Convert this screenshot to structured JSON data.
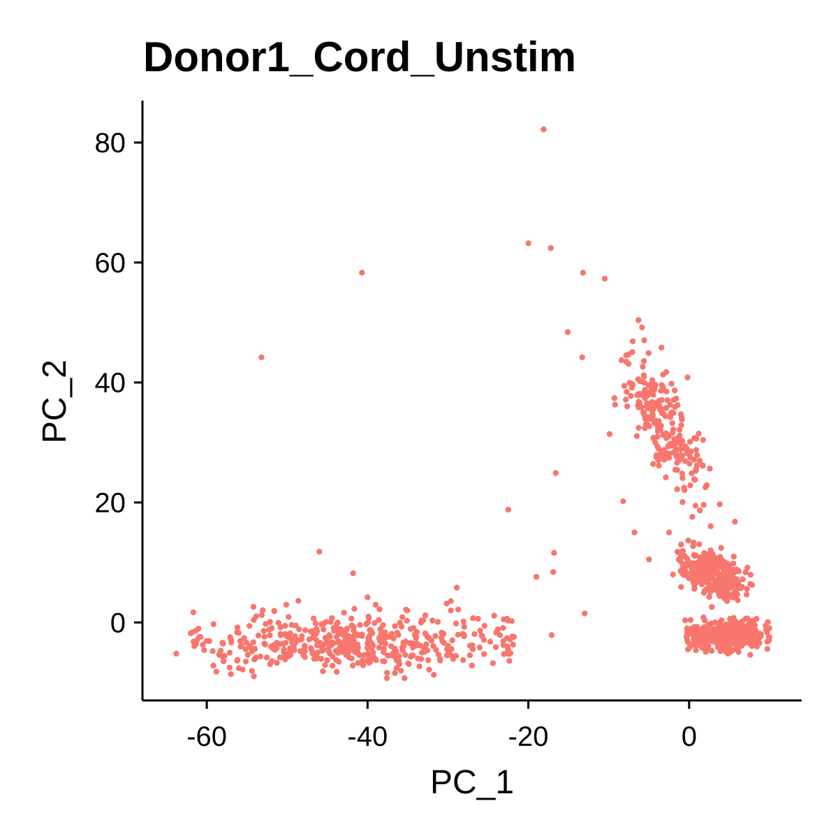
{
  "chart_data": {
    "type": "scatter",
    "title": "Donor1_Cord_Unstim",
    "xlabel": "PC_1",
    "ylabel": "PC_2",
    "xlim": [
      -68,
      14
    ],
    "ylim": [
      -13,
      87
    ],
    "xticks": [
      -60,
      -40,
      -20,
      0
    ],
    "yticks": [
      0,
      20,
      40,
      60,
      80
    ],
    "xtick_labels": [
      "-60",
      "-40",
      "-20",
      "0"
    ],
    "ytick_labels": [
      "0",
      "20",
      "40",
      "60",
      "80"
    ],
    "grid": false,
    "legend": "none",
    "point_color": "#F8766D",
    "point_size": 2.2,
    "outliers": [
      [
        -18.1,
        82.2
      ],
      [
        -20.0,
        63.2
      ],
      [
        -17.2,
        62.4
      ],
      [
        -13.2,
        58.3
      ],
      [
        -10.5,
        57.3
      ],
      [
        -40.7,
        58.3
      ],
      [
        -53.2,
        44.2
      ],
      [
        -15.1,
        48.4
      ],
      [
        -13.3,
        44.2
      ],
      [
        -6.3,
        50.4
      ],
      [
        -9.3,
        37.4
      ],
      [
        -9.2,
        36.3
      ],
      [
        -9.9,
        31.4
      ],
      [
        -16.6,
        24.9
      ],
      [
        -8.2,
        20.2
      ],
      [
        -22.5,
        18.8
      ],
      [
        -16.8,
        11.6
      ],
      [
        -16.9,
        8.4
      ],
      [
        -17.1,
        -2.1
      ],
      [
        -6.8,
        15.0
      ],
      [
        -46.0,
        11.8
      ],
      [
        -41.8,
        8.2
      ],
      [
        -28.9,
        5.8
      ],
      [
        -40.0,
        4.2
      ],
      [
        -48.6,
        3.6
      ],
      [
        -54.2,
        2.6
      ],
      [
        -63.8,
        -5.2
      ],
      [
        -62.0,
        -1.8
      ],
      [
        -58.8,
        -8.2
      ],
      [
        -57.0,
        -8.6
      ],
      [
        -24.4,
        -6.8
      ],
      [
        -21.9,
        -3.7
      ],
      [
        -21.8,
        -2.4
      ],
      [
        -24.0,
        -1.7
      ],
      [
        -26.9,
        0.7
      ],
      [
        -19.0,
        7.6
      ],
      [
        -5.0,
        10.5
      ],
      [
        -2.0,
        8.0
      ],
      [
        1.8,
        19.6
      ],
      [
        3.8,
        19.7
      ],
      [
        5.7,
        16.8
      ],
      [
        0.4,
        17.6
      ],
      [
        -13.0,
        1.5
      ],
      [
        -2.5,
        15.0
      ],
      [
        -1.0,
        13.0
      ]
    ],
    "clusters": [
      {
        "name": "",
        "n": 460,
        "cx": -42,
        "cy": -3.5,
        "sx": 9.5,
        "sy": 2.4,
        "x_min": -62,
        "x_max": -22,
        "tilt": 0.02
      },
      {
        "name": "",
        "n": 560,
        "cx": 4.8,
        "cy": -2.2,
        "sx": 2.3,
        "sy": 1.1,
        "x_min": -0.5,
        "x_max": 10,
        "tilt": 0
      },
      {
        "name": "",
        "n": 320,
        "cx": 3.2,
        "cy": 8.0,
        "sx": 1.8,
        "sy": 2.0,
        "x_min": -1.5,
        "x_max": 8,
        "tilt": -0.5
      },
      {
        "name": "",
        "n": 230,
        "cx": -3.2,
        "cy": 33.0,
        "sx": 1.7,
        "sy": 6.5,
        "x_min": -8.5,
        "x_max": 3.0,
        "tilt": -0.32
      }
    ]
  }
}
